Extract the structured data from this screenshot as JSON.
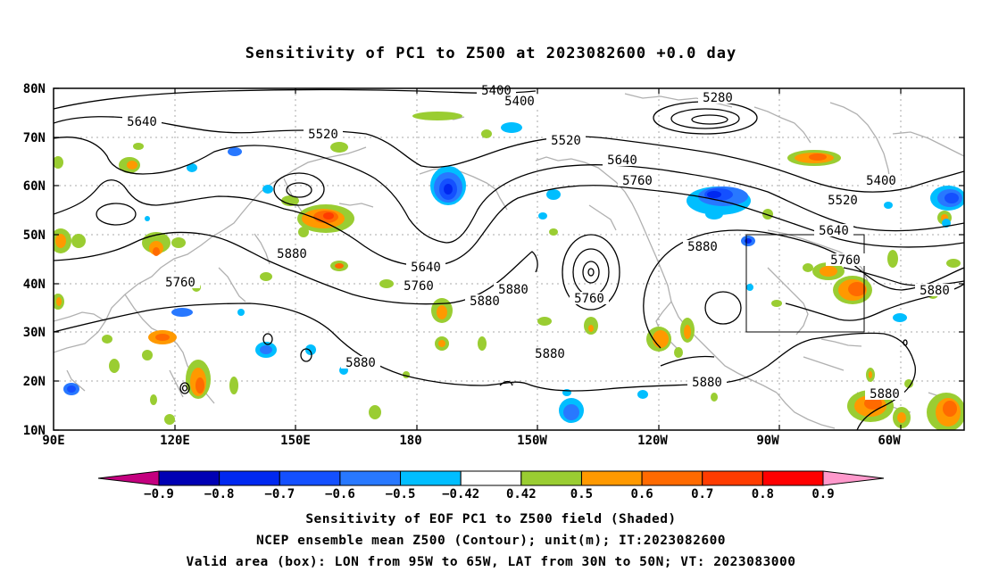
{
  "title": "Sensitivity of PC1 to Z500 at 2023082600 +0.0 day",
  "lat_labels": [
    "80N",
    "70N",
    "60N",
    "50N",
    "40N",
    "30N",
    "20N",
    "10N"
  ],
  "lon_labels": [
    "90E",
    "120E",
    "150E",
    "180",
    "150W",
    "120W",
    "90W",
    "60W"
  ],
  "contour_labels": [
    {
      "text": "5400",
      "role": "contour-label"
    },
    {
      "text": "5400",
      "role": "contour-label"
    },
    {
      "text": "5280",
      "role": "contour-label"
    },
    {
      "text": "5640",
      "role": "contour-label"
    },
    {
      "text": "5520",
      "role": "contour-label"
    },
    {
      "text": "5520",
      "role": "contour-label"
    },
    {
      "text": "5640",
      "role": "contour-label"
    },
    {
      "text": "5760",
      "role": "contour-label"
    },
    {
      "text": "5400",
      "role": "contour-label"
    },
    {
      "text": "5520",
      "role": "contour-label"
    },
    {
      "text": "5640",
      "role": "contour-label"
    },
    {
      "text": "5880",
      "role": "contour-label"
    },
    {
      "text": "5760",
      "role": "contour-label"
    },
    {
      "text": "5880",
      "role": "contour-label"
    },
    {
      "text": "5640",
      "role": "contour-label"
    },
    {
      "text": "5760",
      "role": "contour-label"
    },
    {
      "text": "5880",
      "role": "contour-label"
    },
    {
      "text": "5880",
      "role": "contour-label"
    },
    {
      "text": "5760",
      "role": "contour-label"
    },
    {
      "text": "5760",
      "role": "contour-label"
    },
    {
      "text": "5880",
      "role": "contour-label"
    },
    {
      "text": "5880",
      "role": "contour-label"
    },
    {
      "text": "5880",
      "role": "contour-label"
    },
    {
      "text": "5880",
      "role": "contour-label"
    },
    {
      "text": "5880",
      "role": "contour-label"
    }
  ],
  "colorbar": {
    "colors": [
      "#c4007f",
      "#0000b4",
      "#0028f0",
      "#1450ff",
      "#2878ff",
      "#00beff",
      "#ffffff",
      "#9acd32",
      "#ff9900",
      "#ff6a00",
      "#ff3c00",
      "#ff0000",
      "#ff99cc"
    ],
    "labels": [
      "-0.9",
      "-0.8",
      "-0.7",
      "-0.6",
      "-0.5",
      "-0.42",
      "0.42",
      "0.5",
      "0.6",
      "0.7",
      "0.8",
      "0.9"
    ]
  },
  "footer": {
    "line1": "Sensitivity of EOF PC1 to Z500 field (Shaded)",
    "line2": "NCEP ensemble mean Z500 (Contour); unit(m); IT:2023082600",
    "line3": "Valid area (box): LON from 95W to 65W, LAT from 30N to 50N; VT: 2023083000"
  },
  "valid_area": {
    "lon_west": "95W",
    "lon_east": "65W",
    "lat_south": "30N",
    "lat_north": "50N"
  }
}
